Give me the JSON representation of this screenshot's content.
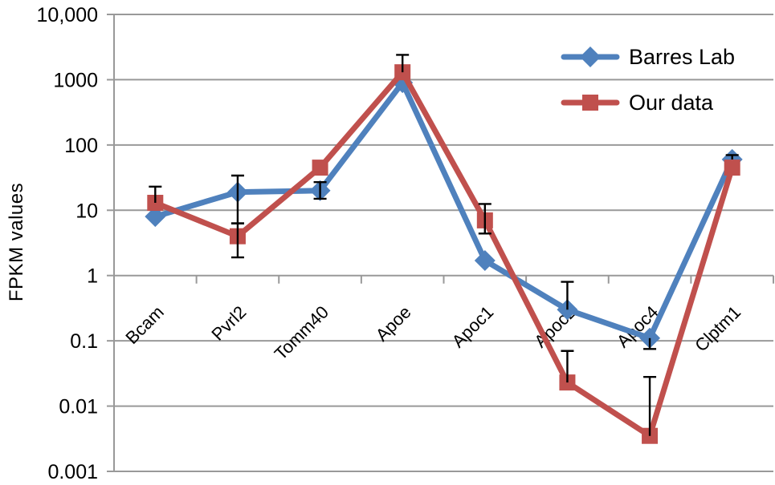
{
  "figure": {
    "background": "#ffffff"
  },
  "chart_data": {
    "type": "line",
    "title": "",
    "ylabel": "FPKM values",
    "xlabel": "",
    "y_scale": "log10",
    "ylim": [
      0.001,
      10000
    ],
    "y_tick_labels": [
      "10,000",
      "1000",
      "100",
      "10",
      "1",
      "0.1",
      "0.01",
      "0.001"
    ],
    "y_tick_values": [
      10000,
      1000,
      100,
      10,
      1,
      0.1,
      0.01,
      0.001
    ],
    "categories": [
      "Bcam",
      "Pvrl2",
      "Tomm40",
      "Apoe",
      "Apoc1",
      "Apoc2",
      "Apoc4",
      "Clptm1"
    ],
    "grid": "horizontal",
    "category_axis_cross_value": 1,
    "legend_position": "top-right",
    "series": [
      {
        "name": "Barres Lab",
        "color": "#4F81BD",
        "marker": "diamond",
        "values": [
          8,
          19,
          20,
          900,
          1.7,
          0.3,
          0.11,
          60
        ],
        "err_lo": [
          null,
          6.3,
          15,
          null,
          null,
          null,
          0.075,
          null
        ],
        "err_hi": [
          null,
          34,
          27,
          null,
          null,
          0.8,
          null,
          70
        ]
      },
      {
        "name": "Our data",
        "color": "#C0504D",
        "marker": "square",
        "values": [
          13,
          4,
          45,
          1300,
          7,
          0.023,
          0.0035,
          45
        ],
        "err_lo": [
          null,
          1.9,
          null,
          null,
          4.4,
          null,
          null,
          null
        ],
        "err_hi": [
          23,
          6.3,
          null,
          2400,
          12.5,
          0.07,
          0.028,
          null
        ]
      }
    ]
  },
  "style": {
    "grid_color": "#999999",
    "axis_color": "#999999",
    "error_bar_color": "#000000",
    "text_color": "#000000"
  }
}
